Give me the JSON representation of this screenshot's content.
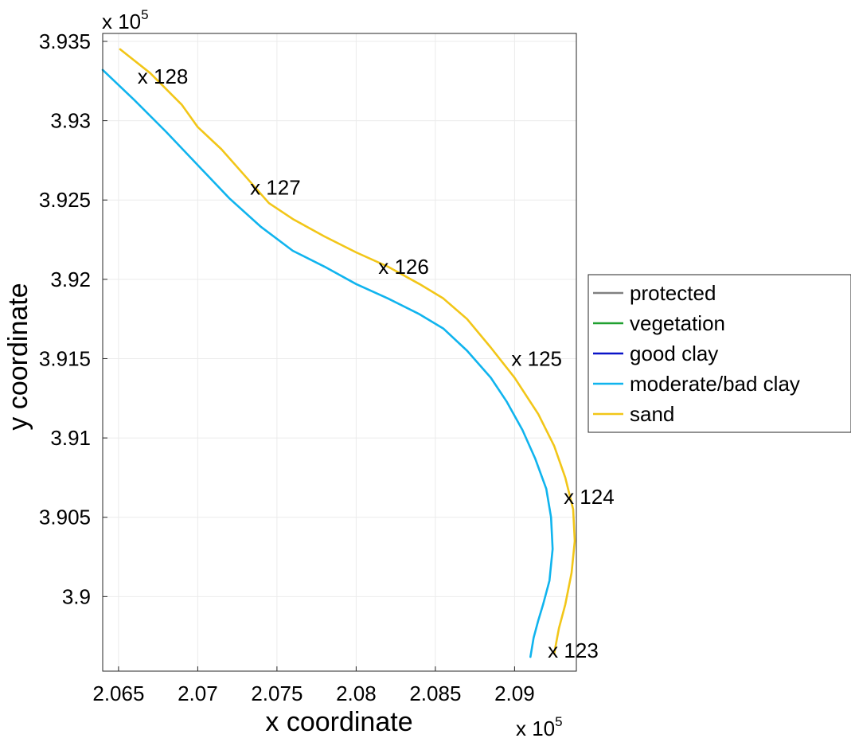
{
  "chart_data": {
    "type": "line",
    "title": "",
    "xlabel": "x coordinate",
    "ylabel": "y coordinate",
    "x_multiplier": "x 10",
    "x_multiplier_exp": "5",
    "y_multiplier": "x 10",
    "y_multiplier_exp": "5",
    "xlim": [
      206400,
      209390
    ],
    "ylim": [
      389530,
      393550
    ],
    "x_ticks": [
      206500,
      207000,
      207500,
      208000,
      208500,
      209000
    ],
    "x_tick_labels": [
      "2.065",
      "2.07",
      "2.075",
      "2.08",
      "2.085",
      "2.09"
    ],
    "y_ticks": [
      390000,
      390500,
      391000,
      391500,
      392000,
      392500,
      393000,
      393500
    ],
    "y_tick_labels": [
      "3.9",
      "3.905",
      "3.91",
      "3.915",
      "3.92",
      "3.925",
      "3.93",
      "3.935"
    ],
    "grid": true,
    "legend_position": "right",
    "legend": [
      {
        "label": "protected",
        "color": "#808080"
      },
      {
        "label": "vegetation",
        "color": "#20a030"
      },
      {
        "label": "good clay",
        "color": "#0a14c8"
      },
      {
        "label": "moderate/bad clay",
        "color": "#10b4ee"
      },
      {
        "label": "sand",
        "color": "#f2c618"
      }
    ],
    "series": [
      {
        "name": "sand",
        "color": "#f2c618",
        "x": [
          206510,
          206700,
          206900,
          207000,
          207150,
          207300,
          207450,
          207600,
          207800,
          208000,
          208200,
          208400,
          208550,
          208700,
          208850,
          209000,
          209150,
          209250,
          209320,
          209370,
          209380,
          209360,
          209320,
          209280,
          209250
        ],
        "y": [
          393450,
          393300,
          393100,
          392960,
          392820,
          392650,
          392480,
          392380,
          392270,
          392170,
          392080,
          391970,
          391880,
          391750,
          391570,
          391380,
          391150,
          390950,
          390750,
          390550,
          390350,
          390150,
          389950,
          389800,
          389640
        ]
      },
      {
        "name": "moderate/bad clay",
        "color": "#10b4ee",
        "x": [
          206400,
          206600,
          206800,
          207000,
          207200,
          207400,
          207600,
          207800,
          208000,
          208200,
          208400,
          208550,
          208700,
          208850,
          208950,
          209050,
          209130,
          209200,
          209230,
          209240,
          209220,
          209180,
          209150,
          209120,
          209100
        ],
        "y": [
          393320,
          393130,
          392930,
          392720,
          392510,
          392330,
          392180,
          392080,
          391970,
          391880,
          391780,
          391690,
          391550,
          391380,
          391230,
          391050,
          390870,
          390680,
          390500,
          390300,
          390100,
          389950,
          389850,
          389740,
          389620
        ]
      }
    ],
    "annotations": [
      {
        "text": "x 128",
        "x": 206620,
        "y": 393280
      },
      {
        "text": "x 127",
        "x": 207330,
        "y": 392580
      },
      {
        "text": "x 126",
        "x": 208140,
        "y": 392080
      },
      {
        "text": "x 125",
        "x": 208980,
        "y": 391500
      },
      {
        "text": "x 124",
        "x": 209310,
        "y": 390630
      },
      {
        "text": "x 123",
        "x": 209210,
        "y": 389660
      }
    ]
  }
}
